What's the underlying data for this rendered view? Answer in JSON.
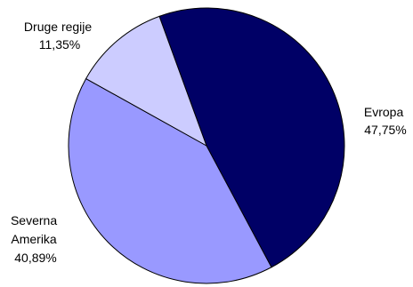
{
  "chart_data": {
    "type": "pie",
    "title": "",
    "series": [
      {
        "values": [
          47.75,
          40.89,
          11.35
        ],
        "categories": [
          "Evropa",
          "Severna Amerika",
          "Druge regije"
        ]
      }
    ],
    "slices": [
      {
        "name_lines": [
          "Evropa"
        ],
        "value": 47.75,
        "value_label": "47,75%",
        "color": "#000066"
      },
      {
        "name_lines": [
          "Severna",
          "Amerika"
        ],
        "value": 40.89,
        "value_label": "40,89%",
        "color": "#9999ff"
      },
      {
        "name_lines": [
          "Druge regije"
        ],
        "value": 11.35,
        "value_label": "11,35%",
        "color": "#ccccff"
      }
    ],
    "legend": "none",
    "start_angle_deg": -20
  }
}
